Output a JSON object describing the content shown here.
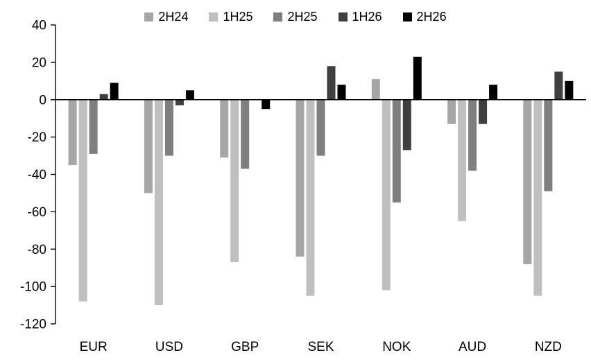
{
  "chart_data": {
    "type": "bar",
    "title": "",
    "xlabel": "",
    "ylabel": "",
    "categories": [
      "EUR",
      "USD",
      "GBP",
      "SEK",
      "NOK",
      "AUD",
      "NZD"
    ],
    "series": [
      {
        "name": "2H24",
        "color": "#a6a6a6",
        "values": [
          -35,
          -50,
          -31,
          -84,
          11,
          -13,
          -88
        ]
      },
      {
        "name": "1H25",
        "color": "#bfbfbf",
        "values": [
          -108,
          -110,
          -87,
          -105,
          -102,
          -65,
          -105
        ]
      },
      {
        "name": "2H25",
        "color": "#7f7f7f",
        "values": [
          -29,
          -30,
          -37,
          -30,
          -55,
          -38,
          -49
        ]
      },
      {
        "name": "1H26",
        "color": "#3f3f3f",
        "values": [
          3,
          -3,
          0,
          18,
          -27,
          -13,
          15
        ]
      },
      {
        "name": "2H26",
        "color": "#000000",
        "values": [
          9,
          5,
          -5,
          8,
          23,
          8,
          10
        ]
      }
    ],
    "ylim": [
      -120,
      40
    ],
    "ytick_step": 20,
    "yticks": [
      40,
      20,
      0,
      -20,
      -40,
      -60,
      -80,
      -100,
      -120
    ],
    "grid": false,
    "legend_position": "top",
    "axis_color": "#000000",
    "text_color": "#000000"
  }
}
